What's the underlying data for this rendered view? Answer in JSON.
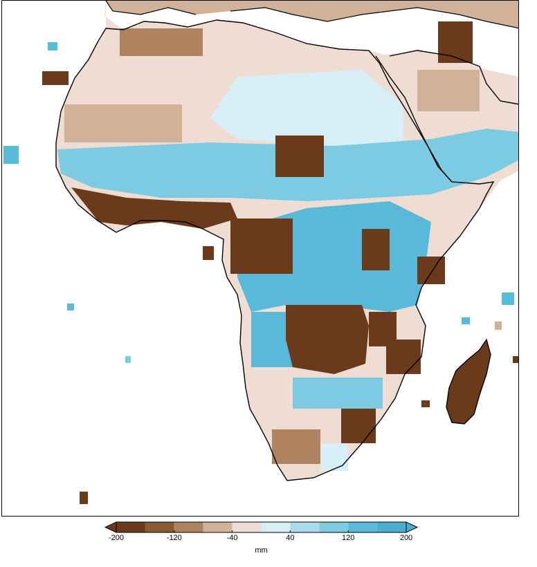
{
  "map": {
    "region": "Africa",
    "colors": {
      "c_m200": "#6b3a1b",
      "c_m160": "#8a5a35",
      "c_m120": "#b08360",
      "c_m80": "#d2b199",
      "c_m40": "#efdcd2",
      "c_p0": "#d8eef6",
      "c_p40": "#a9dbed",
      "c_p80": "#7ccbe3",
      "c_p120": "#58b9d8",
      "c_p160": "#4aaed0",
      "ocean": "#ffffff",
      "coast": "#000000"
    }
  },
  "colorbar": {
    "tick_labels": [
      "-200",
      "-120",
      "-40",
      "40",
      "120",
      "200"
    ],
    "unit": "mm",
    "bins": [
      {
        "min": -200,
        "max": -160,
        "color": "#6b3a1b"
      },
      {
        "min": -160,
        "max": -120,
        "color": "#8a5a35"
      },
      {
        "min": -120,
        "max": -80,
        "color": "#b08360"
      },
      {
        "min": -80,
        "max": -40,
        "color": "#d2b199"
      },
      {
        "min": -40,
        "max": 0,
        "color": "#efdcd2"
      },
      {
        "min": 0,
        "max": 40,
        "color": "#d8eef6"
      },
      {
        "min": 40,
        "max": 80,
        "color": "#a9dbed"
      },
      {
        "min": 80,
        "max": 120,
        "color": "#7ccbe3"
      },
      {
        "min": 120,
        "max": 160,
        "color": "#58b9d8"
      },
      {
        "min": 160,
        "max": 200,
        "color": "#4aaed0"
      }
    ],
    "extend": "both"
  }
}
